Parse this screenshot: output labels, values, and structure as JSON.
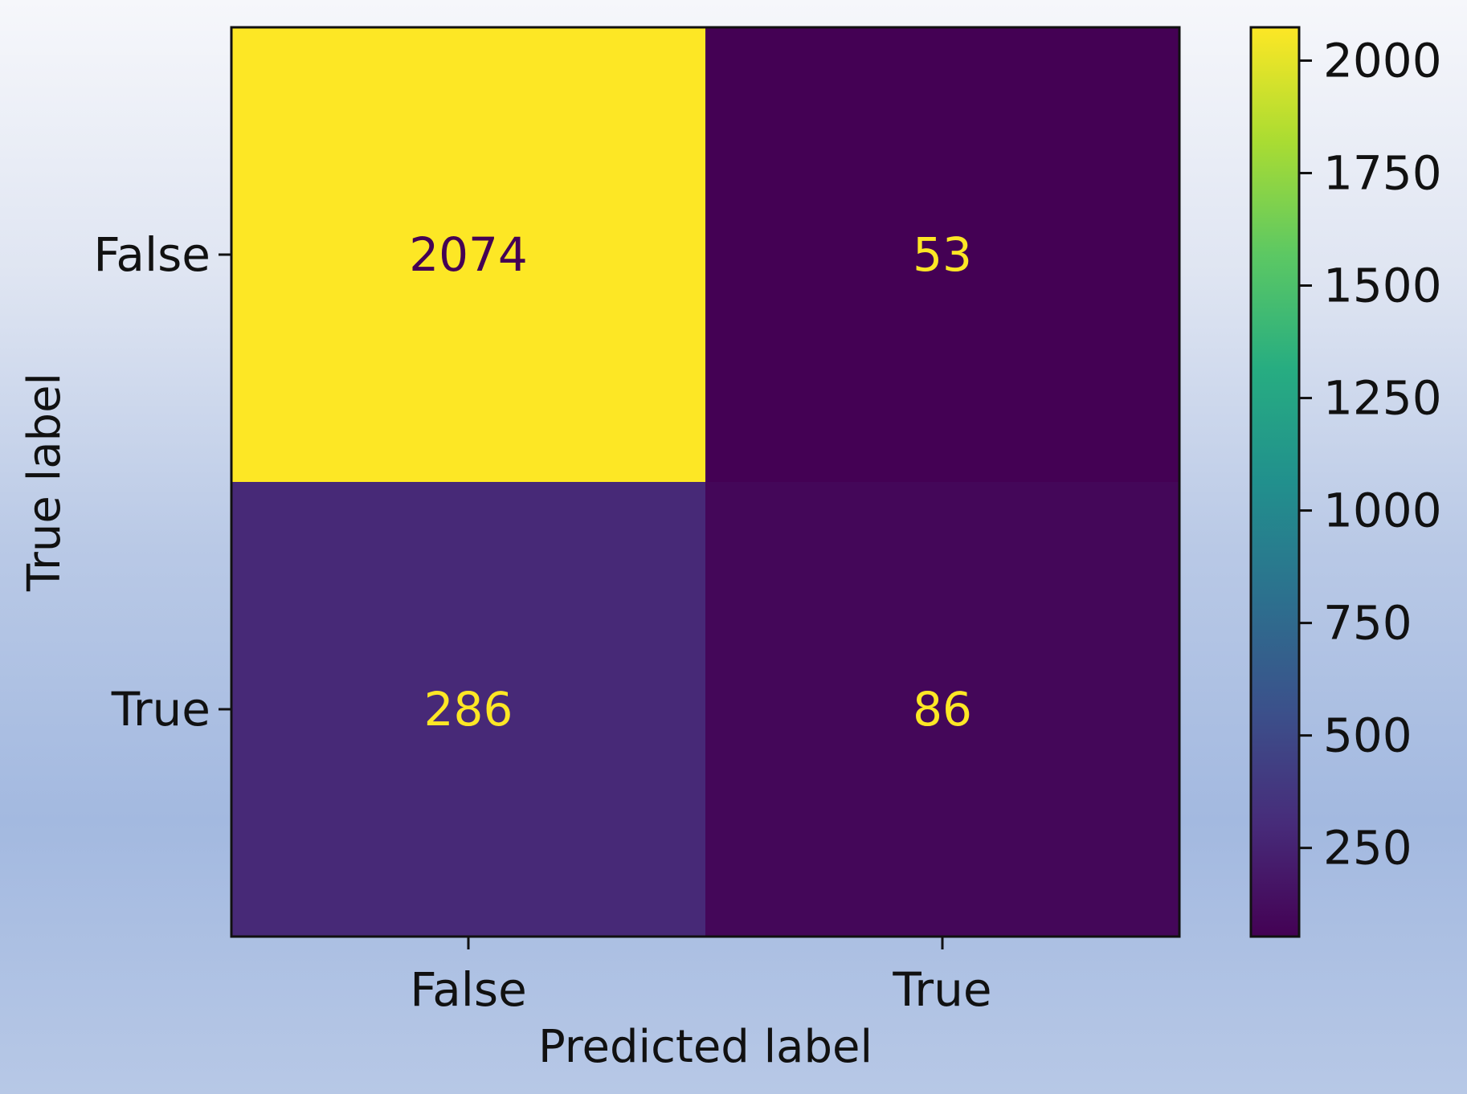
{
  "chart_data": {
    "type": "heatmap",
    "title": "",
    "xlabel": "Predicted label",
    "ylabel": "True label",
    "x_categories": [
      "False",
      "True"
    ],
    "y_categories": [
      "False",
      "True"
    ],
    "values": [
      [
        2074,
        53
      ],
      [
        286,
        86
      ]
    ],
    "colormap": "viridis",
    "colorbar": {
      "vmin": 53,
      "vmax": 2074,
      "ticks": [
        250,
        500,
        750,
        1000,
        1250,
        1500,
        1750,
        2000
      ]
    },
    "text_colors": {
      "on_dark": "#fde725",
      "on_light": "#440154"
    },
    "grid": false
  }
}
